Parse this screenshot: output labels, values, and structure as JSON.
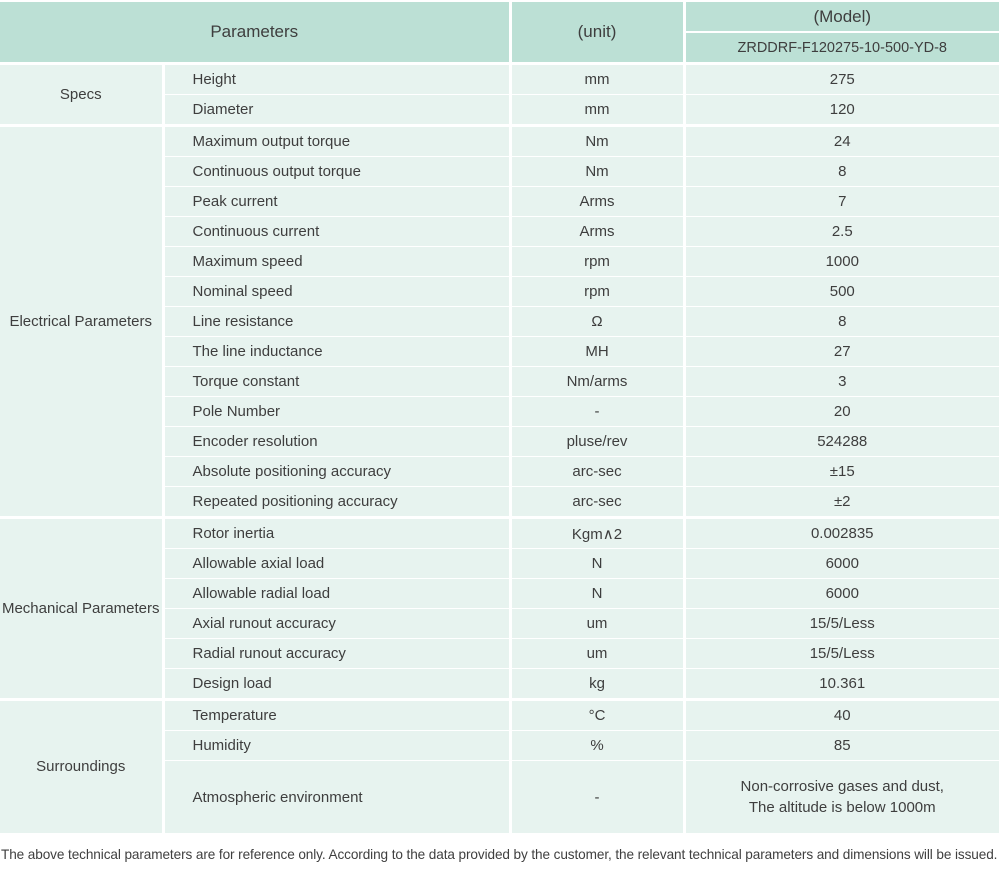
{
  "table": {
    "header": {
      "parameters": "Parameters",
      "unit": "(unit)",
      "model": "(Model)",
      "model_value": "ZRDDRF-F120275-10-500-YD-8"
    },
    "sections": [
      {
        "group": "Specs",
        "rows": [
          {
            "param": "Height",
            "unit": "mm",
            "value": "275"
          },
          {
            "param": "Diameter",
            "unit": "mm",
            "value": "120"
          }
        ]
      },
      {
        "group": "Electrical Parameters",
        "rows": [
          {
            "param": "Maximum output torque",
            "unit": "Nm",
            "value": "24"
          },
          {
            "param": "Continuous output torque",
            "unit": "Nm",
            "value": "8"
          },
          {
            "param": "Peak current",
            "unit": "Arms",
            "value": "7"
          },
          {
            "param": "Continuous current",
            "unit": "Arms",
            "value": "2.5"
          },
          {
            "param": "Maximum speed",
            "unit": "rpm",
            "value": "1000"
          },
          {
            "param": "Nominal speed",
            "unit": "rpm",
            "value": "500"
          },
          {
            "param": "Line resistance",
            "unit": "Ω",
            "value": "8"
          },
          {
            "param": "The line inductance",
            "unit": "MH",
            "value": "27"
          },
          {
            "param": "Torque constant",
            "unit": "Nm/arms",
            "value": "3"
          },
          {
            "param": "Pole Number",
            "unit": "-",
            "value": "20"
          },
          {
            "param": "Encoder resolution",
            "unit": "pluse/rev",
            "value": "524288"
          },
          {
            "param": "Absolute positioning accuracy",
            "unit": "arc-sec",
            "value": "±15"
          },
          {
            "param": "Repeated positioning accuracy",
            "unit": "arc-sec",
            "value": "±2"
          }
        ]
      },
      {
        "group": "Mechanical Parameters",
        "rows": [
          {
            "param": "Rotor inertia",
            "unit": "Kgm∧2",
            "value": "0.002835"
          },
          {
            "param": "Allowable axial load",
            "unit": "N",
            "value": "6000"
          },
          {
            "param": "Allowable radial load",
            "unit": "N",
            "value": "6000"
          },
          {
            "param": "Axial runout accuracy",
            "unit": "um",
            "value": "15/5/Less"
          },
          {
            "param": "Radial runout accuracy",
            "unit": "um",
            "value": "15/5/Less"
          },
          {
            "param": "Design load",
            "unit": "kg",
            "value": "10.361"
          }
        ]
      },
      {
        "group": "Surroundings",
        "rows": [
          {
            "param": "Temperature",
            "unit": "°C",
            "value": "40"
          },
          {
            "param": "Humidity",
            "unit": "%",
            "value": "85"
          },
          {
            "param": "Atmospheric environment",
            "unit": "-",
            "value": "Non-corrosive gases and dust,\nThe altitude is below 1000m"
          }
        ]
      }
    ]
  },
  "footer": {
    "note": "The above technical parameters are for reference only. According to the data provided by the customer, the relevant technical parameters and dimensions will be issued."
  },
  "colors": {
    "header_bg": "#bce0d5",
    "row_bg": "#e7f3ef"
  }
}
